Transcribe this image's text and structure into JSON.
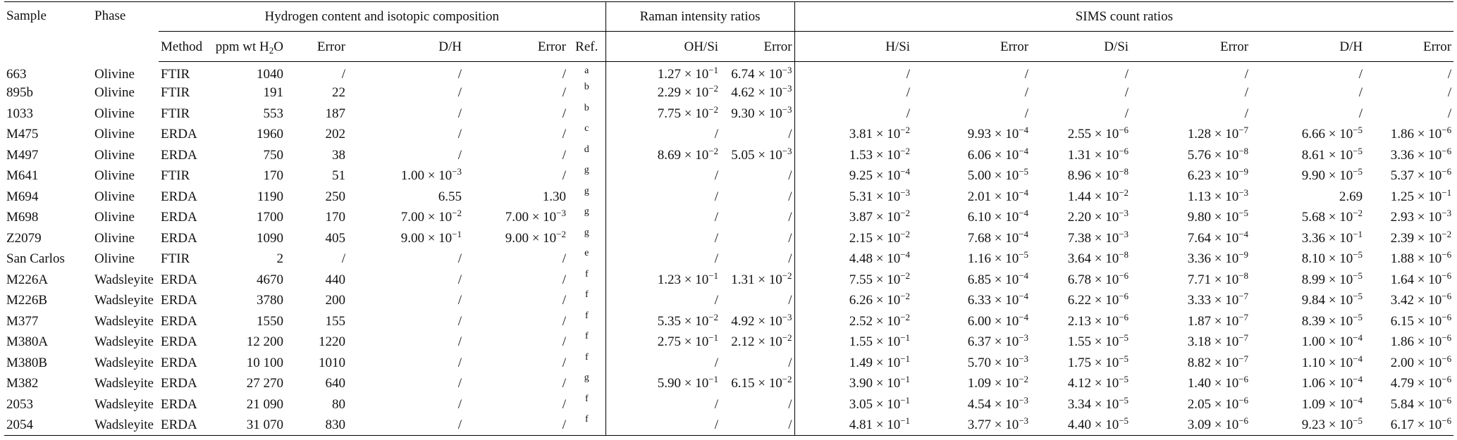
{
  "header": {
    "sample": "Sample",
    "phase": "Phase",
    "group_hydrogen": "Hydrogen content and isotopic composition",
    "group_raman": "Raman intensity ratios",
    "group_sims": "SIMS count ratios",
    "method": "Method",
    "ppm_prefix": "ppm wt H",
    "ppm_sub": "2",
    "ppm_suffix": "O",
    "error": "Error",
    "dh": "D/H",
    "ref": "Ref.",
    "ohsi": "OH/Si",
    "hsi": "H/Si",
    "dsi": "D/Si"
  },
  "rows": [
    {
      "sample": "663",
      "phase": "Olivine",
      "method": "FTIR",
      "ppm": "1040",
      "err": "/",
      "dh": "/",
      "dh_err": "/",
      "ref": "a",
      "ohsi": "1.27 × 10^-1",
      "ohsi_err": "6.74 × 10^-3",
      "hsi": "/",
      "hsi_err": "/",
      "dsi": "/",
      "dsi_err": "/",
      "sdh": "/",
      "sdh_err": "/"
    },
    {
      "sample": "895b",
      "phase": "Olivine",
      "method": "FTIR",
      "ppm": "191",
      "err": "22",
      "dh": "/",
      "dh_err": "/",
      "ref": "b",
      "ohsi": "2.29 × 10^-2",
      "ohsi_err": "4.62 × 10^-3",
      "hsi": "/",
      "hsi_err": "/",
      "dsi": "/",
      "dsi_err": "/",
      "sdh": "/",
      "sdh_err": "/"
    },
    {
      "sample": "1033",
      "phase": "Olivine",
      "method": "FTIR",
      "ppm": "553",
      "err": "187",
      "dh": "/",
      "dh_err": "/",
      "ref": "b",
      "ohsi": "7.75 × 10^-2",
      "ohsi_err": "9.30 × 10^-3",
      "hsi": "/",
      "hsi_err": "/",
      "dsi": "/",
      "dsi_err": "/",
      "sdh": "/",
      "sdh_err": "/"
    },
    {
      "sample": "M475",
      "phase": "Olivine",
      "method": "ERDA",
      "ppm": "1960",
      "err": "202",
      "dh": "/",
      "dh_err": "/",
      "ref": "c",
      "ohsi": "/",
      "ohsi_err": "/",
      "hsi": "3.81 × 10^-2",
      "hsi_err": "9.93 × 10^-4",
      "dsi": "2.55 × 10^-6",
      "dsi_err": "1.28 × 10^-7",
      "sdh": "6.66 × 10^-5",
      "sdh_err": "1.86 × 10^-6"
    },
    {
      "sample": "M497",
      "phase": "Olivine",
      "method": "ERDA",
      "ppm": "750",
      "err": "38",
      "dh": "/",
      "dh_err": "/",
      "ref": "d",
      "ohsi": "8.69 × 10^-2",
      "ohsi_err": "5.05 × 10^-3",
      "hsi": "1.53 × 10^-2",
      "hsi_err": "6.06 × 10^-4",
      "dsi": "1.31 × 10^-6",
      "dsi_err": "5.76 × 10^-8",
      "sdh": "8.61 × 10^-5",
      "sdh_err": "3.36 × 10^-6"
    },
    {
      "sample": "M641",
      "phase": "Olivine",
      "method": "FTIR",
      "ppm": "170",
      "err": "51",
      "dh": "1.00 × 10^-3",
      "dh_err": "/",
      "ref": "g",
      "ohsi": "/",
      "ohsi_err": "/",
      "hsi": "9.25 × 10^-4",
      "hsi_err": "5.00 × 10^-5",
      "dsi": "8.96 × 10^-8",
      "dsi_err": "6.23 × 10^-9",
      "sdh": "9.90 × 10^-5",
      "sdh_err": "5.37 × 10^-6"
    },
    {
      "sample": "M694",
      "phase": "Olivine",
      "method": "ERDA",
      "ppm": "1190",
      "err": "250",
      "dh": "6.55",
      "dh_err": "1.30",
      "ref": "g",
      "ohsi": "/",
      "ohsi_err": "/",
      "hsi": "5.31 × 10^-3",
      "hsi_err": "2.01 × 10^-4",
      "dsi": "1.44 × 10^-2",
      "dsi_err": "1.13 × 10^-3",
      "sdh": "2.69",
      "sdh_err": "1.25 × 10^-1"
    },
    {
      "sample": "M698",
      "phase": "Olivine",
      "method": "ERDA",
      "ppm": "1700",
      "err": "170",
      "dh": "7.00 × 10^-2",
      "dh_err": "7.00 × 10^-3",
      "ref": "g",
      "ohsi": "/",
      "ohsi_err": "/",
      "hsi": "3.87 × 10^-2",
      "hsi_err": "6.10 × 10^-4",
      "dsi": "2.20 × 10^-3",
      "dsi_err": "9.80 × 10^-5",
      "sdh": "5.68 × 10^-2",
      "sdh_err": "2.93 × 10^-3"
    },
    {
      "sample": "Z2079",
      "phase": "Olivine",
      "method": "ERDA",
      "ppm": "1090",
      "err": "405",
      "dh": "9.00 × 10^-1",
      "dh_err": "9.00 × 10^-2",
      "ref": "g",
      "ohsi": "/",
      "ohsi_err": "/",
      "hsi": "2.15 × 10^-2",
      "hsi_err": "7.68 × 10^-4",
      "dsi": "7.38 × 10^-3",
      "dsi_err": "7.64 × 10^-4",
      "sdh": "3.36 × 10^-1",
      "sdh_err": "2.39 × 10^-2"
    },
    {
      "sample": "San Carlos",
      "phase": "Olivine",
      "method": "FTIR",
      "ppm": "2",
      "err": "/",
      "dh": "/",
      "dh_err": "/",
      "ref": "e",
      "ohsi": "/",
      "ohsi_err": "/",
      "hsi": "4.48 × 10^-4",
      "hsi_err": "1.16 × 10^-5",
      "dsi": "3.64 × 10^-8",
      "dsi_err": "3.36 × 10^-9",
      "sdh": "8.10 × 10^-5",
      "sdh_err": "1.88 × 10^-6"
    },
    {
      "sample": "M226A",
      "phase": "Wadsleyite",
      "method": "ERDA",
      "ppm": "4670",
      "err": "440",
      "dh": "/",
      "dh_err": "/",
      "ref": "f",
      "ohsi": "1.23 × 10^-1",
      "ohsi_err": "1.31 × 10^-2",
      "hsi": "7.55 × 10^-2",
      "hsi_err": "6.85 × 10^-4",
      "dsi": "6.78 × 10^-6",
      "dsi_err": "7.71 × 10^-8",
      "sdh": "8.99 × 10^-5",
      "sdh_err": "1.64 × 10^-6"
    },
    {
      "sample": "M226B",
      "phase": "Wadsleyite",
      "method": "ERDA",
      "ppm": "3780",
      "err": "200",
      "dh": "/",
      "dh_err": "/",
      "ref": "f",
      "ohsi": "/",
      "ohsi_err": "/",
      "hsi": "6.26 × 10^-2",
      "hsi_err": "6.33 × 10^-4",
      "dsi": "6.22 × 10^-6",
      "dsi_err": "3.33 × 10^-7",
      "sdh": "9.84 × 10^-5",
      "sdh_err": "3.42 × 10^-6"
    },
    {
      "sample": "M377",
      "phase": "Wadsleyite",
      "method": "ERDA",
      "ppm": "1550",
      "err": "155",
      "dh": "/",
      "dh_err": "/",
      "ref": "f",
      "ohsi": "5.35 × 10^-2",
      "ohsi_err": "4.92 × 10^-3",
      "hsi": "2.52 × 10^-2",
      "hsi_err": "6.00 × 10^-4",
      "dsi": "2.13 × 10^-6",
      "dsi_err": "1.87 × 10^-7",
      "sdh": "8.39 × 10^-5",
      "sdh_err": "6.15 × 10^-6"
    },
    {
      "sample": "M380A",
      "phase": "Wadsleyite",
      "method": "ERDA",
      "ppm": "12 200",
      "err": "1220",
      "dh": "/",
      "dh_err": "/",
      "ref": "f",
      "ohsi": "2.75 × 10^-1",
      "ohsi_err": "2.12 × 10^-2",
      "hsi": "1.55 × 10^-1",
      "hsi_err": "6.37 × 10^-3",
      "dsi": "1.55 × 10^-5",
      "dsi_err": "3.18 × 10^-7",
      "sdh": "1.00 × 10^-4",
      "sdh_err": "1.86 × 10^-6"
    },
    {
      "sample": "M380B",
      "phase": "Wadsleyite",
      "method": "ERDA",
      "ppm": "10 100",
      "err": "1010",
      "dh": "/",
      "dh_err": "/",
      "ref": "f",
      "ohsi": "/",
      "ohsi_err": "/",
      "hsi": "1.49 × 10^-1",
      "hsi_err": "5.70 × 10^-3",
      "dsi": "1.75 × 10^-5",
      "dsi_err": "8.82 × 10^-7",
      "sdh": "1.10 × 10^-4",
      "sdh_err": "2.00 × 10^-6"
    },
    {
      "sample": "M382",
      "phase": "Wadsleyite",
      "method": "ERDA",
      "ppm": "27 270",
      "err": "640",
      "dh": "/",
      "dh_err": "/",
      "ref": "g",
      "ohsi": "5.90 × 10^-1",
      "ohsi_err": "6.15 × 10^-2",
      "hsi": "3.90 × 10^-1",
      "hsi_err": "1.09 × 10^-2",
      "dsi": "4.12 × 10^-5",
      "dsi_err": "1.40 × 10^-6",
      "sdh": "1.06 × 10^-4",
      "sdh_err": "4.79 × 10^-6"
    },
    {
      "sample": "2053",
      "phase": "Wadsleyite",
      "method": "ERDA",
      "ppm": "21 090",
      "err": "80",
      "dh": "/",
      "dh_err": "/",
      "ref": "f",
      "ohsi": "/",
      "ohsi_err": "/",
      "hsi": "3.05 × 10^-1",
      "hsi_err": "4.54 × 10^-3",
      "dsi": "3.34 × 10^-5",
      "dsi_err": "2.05 × 10^-6",
      "sdh": "1.09 × 10^-4",
      "sdh_err": "5.84 × 10^-6"
    },
    {
      "sample": "2054",
      "phase": "Wadsleyite",
      "method": "ERDA",
      "ppm": "31 070",
      "err": "830",
      "dh": "/",
      "dh_err": "/",
      "ref": "f",
      "ohsi": "/",
      "ohsi_err": "/",
      "hsi": "4.81 × 10^-1",
      "hsi_err": "3.77 × 10^-3",
      "dsi": "4.40 × 10^-5",
      "dsi_err": "3.09 × 10^-6",
      "sdh": "9.23 × 10^-5",
      "sdh_err": "6.17 × 10^-6"
    }
  ]
}
